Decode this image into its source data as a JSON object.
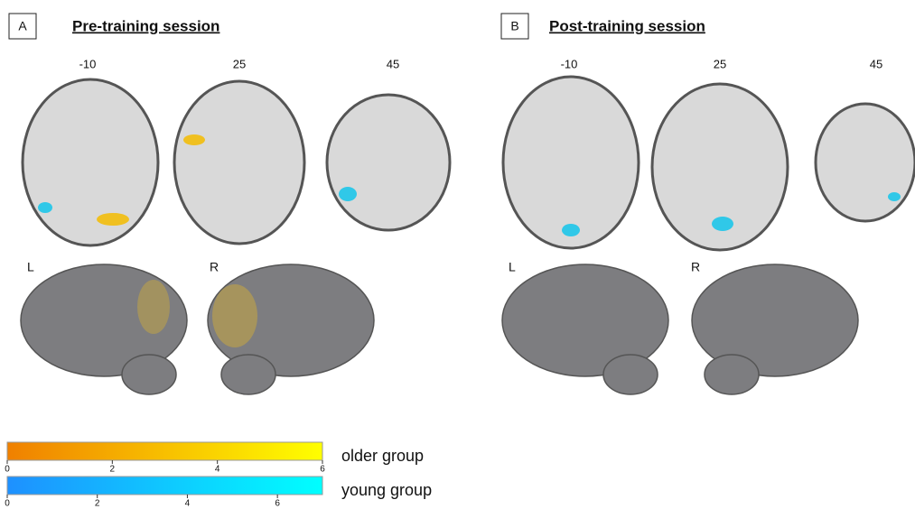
{
  "panels": [
    {
      "label": "A",
      "title": "Pre-training session",
      "slices": [
        -10,
        25,
        45
      ],
      "hemispheres": [
        "L",
        "R"
      ]
    },
    {
      "label": "B",
      "title": "Post-training session",
      "slices": [
        -10,
        25,
        45
      ],
      "hemispheres": [
        "L",
        "R"
      ]
    }
  ],
  "colorbars": [
    {
      "name": "older group",
      "range": [
        0,
        6
      ],
      "ticks": [
        0,
        2,
        4,
        6
      ],
      "colors": [
        "#f08000",
        "#ffff00"
      ]
    },
    {
      "name": "young group",
      "range": [
        0,
        7
      ],
      "ticks": [
        0,
        2,
        4,
        6
      ],
      "colors": [
        "#1e90ff",
        "#00ffff"
      ]
    }
  ]
}
